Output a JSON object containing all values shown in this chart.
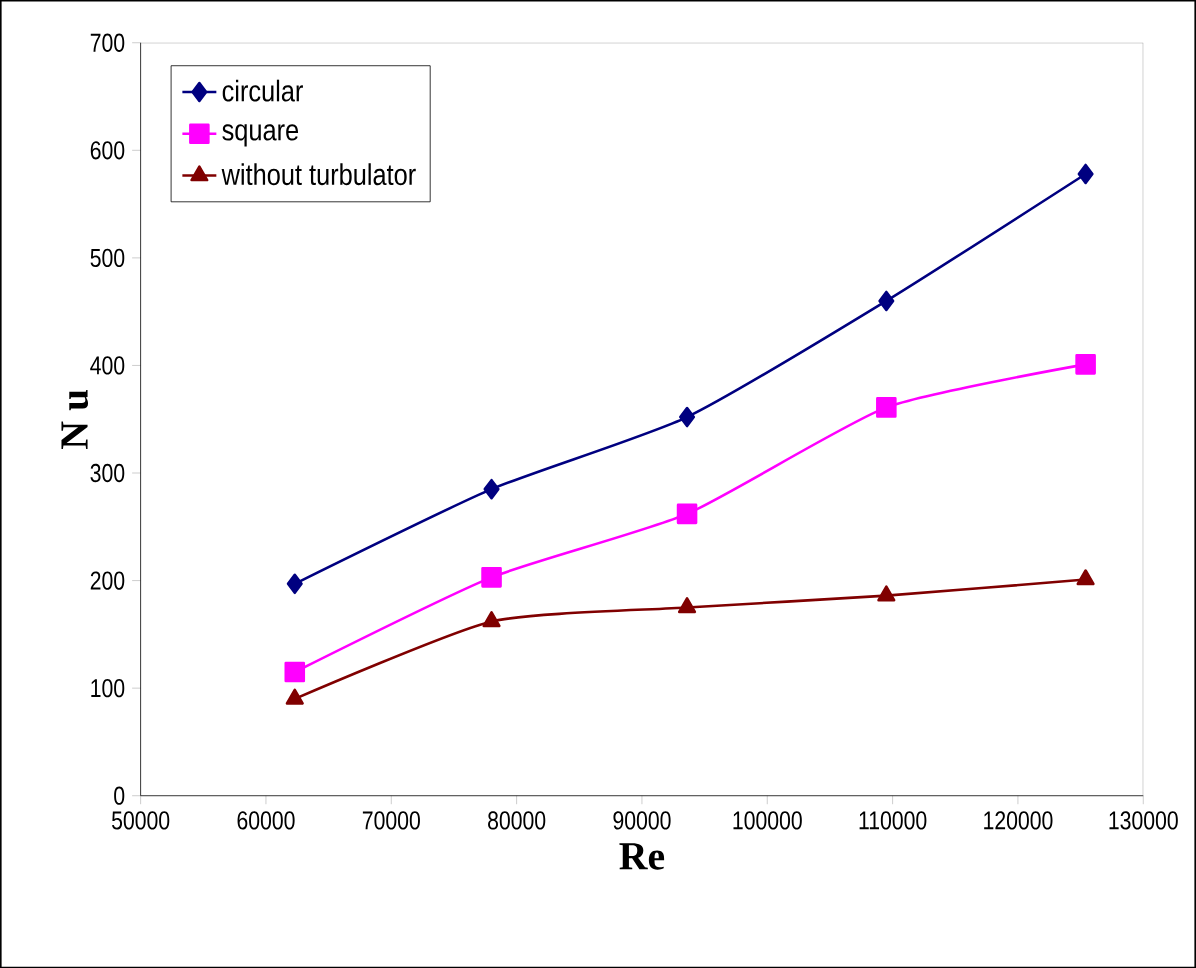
{
  "chart_data": {
    "type": "line",
    "xlabel": "Re",
    "ylabel": "N u",
    "x": [
      62300,
      78000,
      93600,
      109500,
      125400
    ],
    "series": [
      {
        "name": "circular",
        "color": "#000080",
        "marker": "diamond",
        "values": [
          197,
          285,
          352,
          460,
          578
        ]
      },
      {
        "name": "square",
        "color": "#ff00ff",
        "marker": "square",
        "values": [
          115,
          203,
          262,
          361,
          401
        ]
      },
      {
        "name": "without turbulator",
        "color": "#800000",
        "marker": "triangle",
        "values": [
          90,
          162,
          175,
          186,
          201
        ]
      }
    ],
    "xlim": [
      50000,
      130000
    ],
    "xticks": [
      50000,
      60000,
      70000,
      80000,
      90000,
      100000,
      110000,
      120000,
      130000
    ],
    "ylim": [
      0,
      700
    ],
    "yticks": [
      0,
      100,
      200,
      300,
      400,
      500,
      600,
      700
    ],
    "grid": false,
    "legend": "top left",
    "line_style": "solid"
  }
}
